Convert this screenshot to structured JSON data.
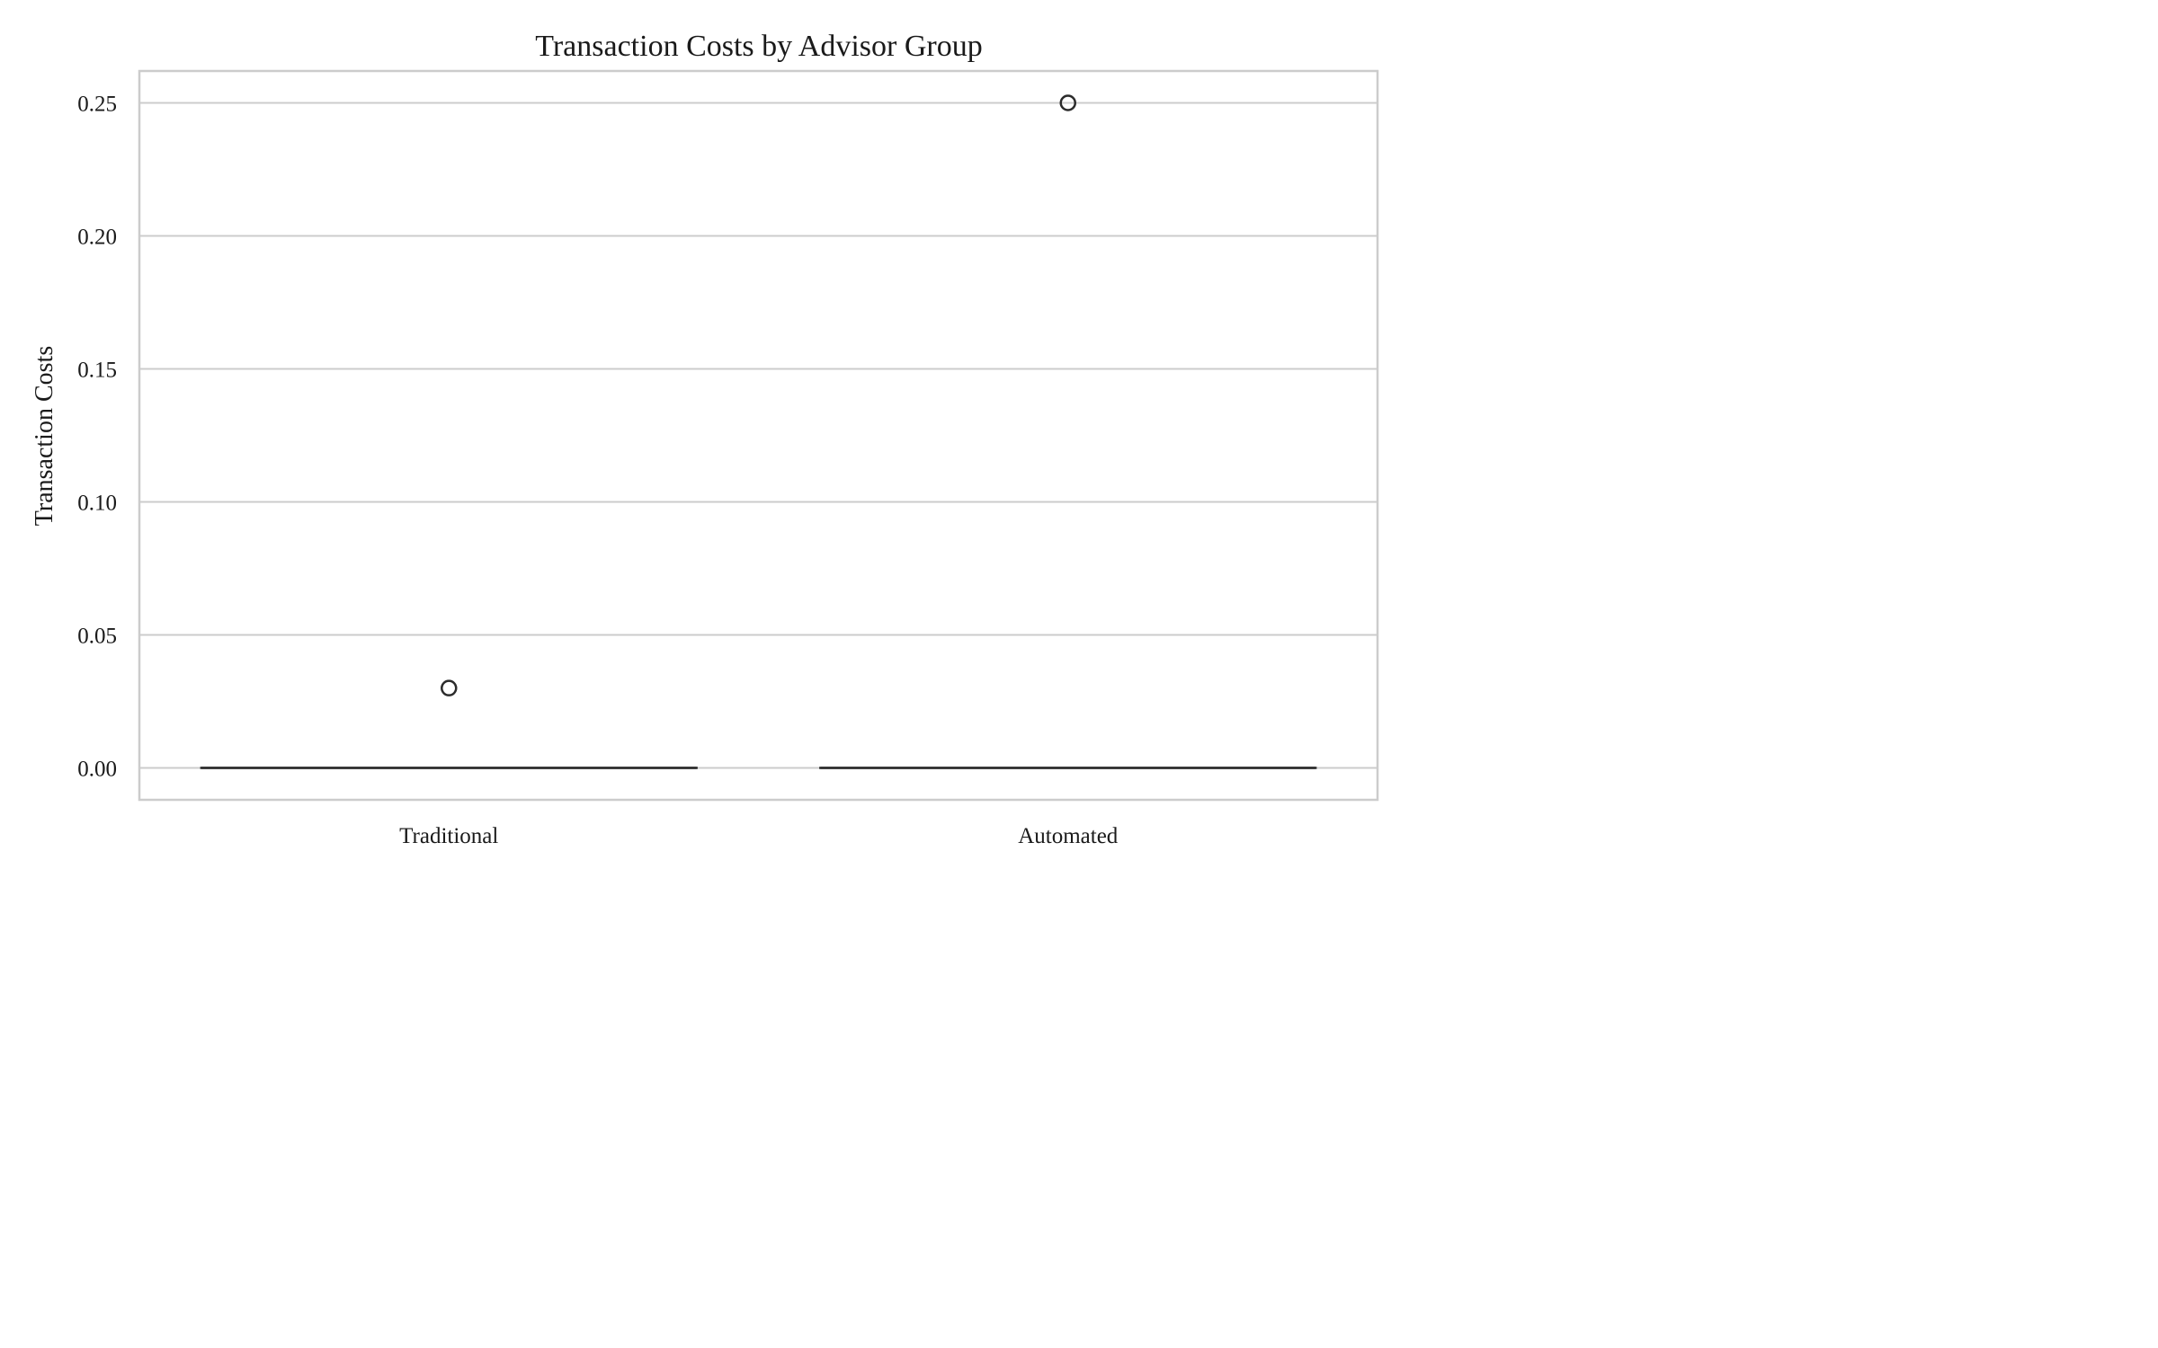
{
  "chart_data": {
    "type": "box",
    "title": "Transaction Costs by Advisor Group",
    "xlabel": "",
    "ylabel": "Transaction Costs",
    "categories": [
      "Traditional",
      "Automated"
    ],
    "boxes": [
      {
        "category": "Traditional",
        "min": 0.0,
        "q1": 0.0,
        "median": 0.0,
        "q3": 0.0,
        "max": 0.0,
        "outliers": [
          0.03
        ]
      },
      {
        "category": "Automated",
        "min": 0.0,
        "q1": 0.0,
        "median": 0.0,
        "q3": 0.0,
        "max": 0.0,
        "outliers": [
          0.25
        ]
      }
    ],
    "ylim": [
      -0.012,
      0.262
    ],
    "yticks": [
      "0.00",
      "0.05",
      "0.10",
      "0.15",
      "0.20",
      "0.25"
    ],
    "grid": "horizontal",
    "legend": "none"
  }
}
